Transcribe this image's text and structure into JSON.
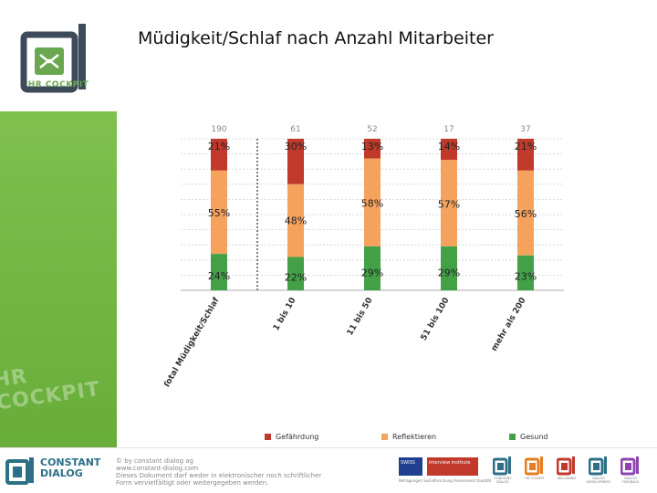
{
  "header": {
    "title": "Müdigkeit/Schlaf nach Anzahl Mitarbeiter"
  },
  "sidebar": {
    "logo_text": "HR COCKPIT",
    "ghost_text": "HR COCKPIT"
  },
  "chart_data": {
    "type": "bar",
    "stacked": true,
    "percent_stacked": true,
    "categories": [
      "Total Müdigkeit/Schlaf",
      "1 bis 10",
      "11 bis 50",
      "51 bis 100",
      "mehr als 200"
    ],
    "n_values": [
      "190",
      "61",
      "52",
      "17",
      "37"
    ],
    "series": [
      {
        "name": "Gefährdung",
        "color": "#c0392b",
        "values": [
          21,
          30,
          13,
          14,
          21
        ],
        "labels": [
          "21%",
          "30%",
          "13%",
          "14%",
          "21%"
        ]
      },
      {
        "name": "Reflektieren",
        "color": "#f5a25d",
        "values": [
          55,
          48,
          58,
          57,
          56
        ],
        "labels": [
          "55%",
          "48%",
          "58%",
          "57%",
          "56%"
        ]
      },
      {
        "name": "Gesund",
        "color": "#43a047",
        "values": [
          24,
          22,
          29,
          29,
          23
        ],
        "labels": [
          "24%",
          "22%",
          "29%",
          "29%",
          "23%"
        ]
      }
    ],
    "ylim": [
      0,
      100
    ],
    "grid": true,
    "legend_position": "bottom"
  },
  "footer": {
    "company_line1": "CONSTANT",
    "company_line2": "DIALOG",
    "legal_lines": [
      "© by constant dialog ag",
      "www.constant-dialog.com",
      "Dieses Dokument darf weder in elektronischer noch schriftlicher",
      "Form vervielfältigt oder weitergegeben werden."
    ],
    "badge1_text": "SWISS",
    "badge2_text": "interview institute",
    "badge_caption": "Befragungen  Sozialforschung  Assessment  Qualität",
    "brand_captions": [
      "CONSTANT DIALOG",
      "HR COCKPIT",
      "WELLBEING",
      "DIALOG DEVELOPMENT",
      "DIALOG FEEDBACK"
    ],
    "brand_colors": [
      "#2d6f86",
      "#e67e22",
      "#c0392b",
      "#2d6f86",
      "#8e44ad"
    ]
  }
}
